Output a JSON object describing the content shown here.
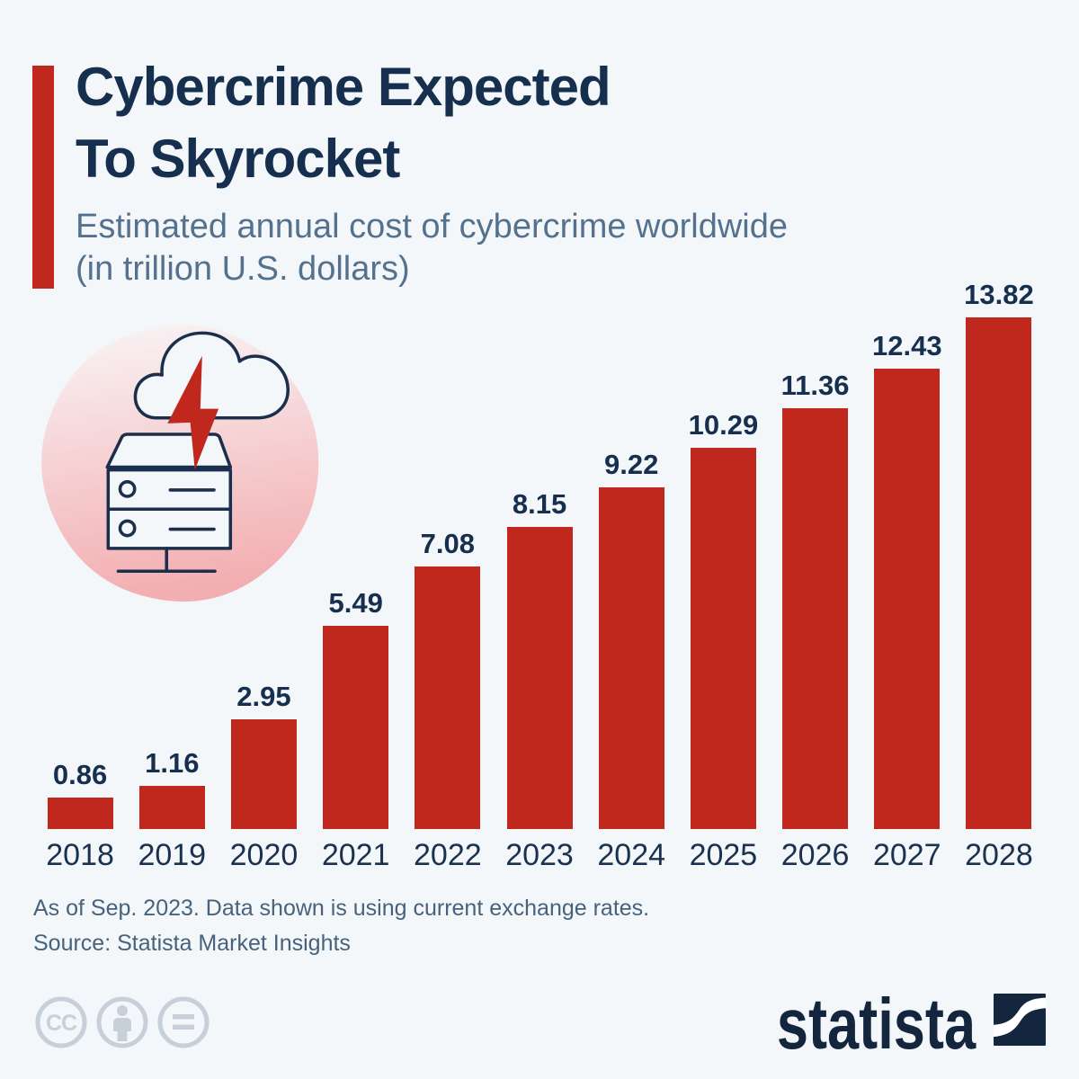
{
  "page": {
    "background": "#f3f7fa"
  },
  "header": {
    "title_line1": "Cybercrime Expected",
    "title_line2": "To Skyrocket",
    "subtitle_line1": "Estimated annual cost of cybercrime worldwide",
    "subtitle_line2": "(in trillion U.S. dollars)"
  },
  "chart_data": {
    "type": "bar",
    "title": "Cybercrime Expected To Skyrocket",
    "subtitle": "Estimated annual cost of cybercrime worldwide (in trillion U.S. dollars)",
    "categories": [
      "2018",
      "2019",
      "2020",
      "2021",
      "2022",
      "2023",
      "2024",
      "2025",
      "2026",
      "2027",
      "2028"
    ],
    "values": [
      0.86,
      1.16,
      2.95,
      5.49,
      7.08,
      8.15,
      9.22,
      10.29,
      11.36,
      12.43,
      13.82
    ],
    "unit": "trillion U.S. dollars",
    "xlabel": "",
    "ylabel": "",
    "ylim": [
      0,
      14
    ],
    "grid": false,
    "legend": false,
    "bar_color": "#c0281d",
    "value_label_color": "#162f4e",
    "category_label_color": "#1b3150"
  },
  "icon": {
    "name": "cloud-lightning-server-icon",
    "blob_top_color": "#f9f4f5",
    "blob_bottom_color": "#f3aeb1",
    "outline_color": "#1b2f4d",
    "bolt_color": "#c0281d"
  },
  "footer": {
    "note_line1": "As of Sep. 2023. Data shown is using current exchange rates.",
    "note_line2": "Source: Statista Market Insights",
    "license_icons": [
      "cc-icon",
      "cc-by-icon",
      "cc-nd-icon"
    ],
    "license_color": "#c7d0d9",
    "brand": "statista"
  },
  "colors": {
    "accent_red": "#c0281d",
    "navy": "#162f4e",
    "slate": "#54718e",
    "footnote": "#47627c",
    "background": "#f3f7fa"
  }
}
